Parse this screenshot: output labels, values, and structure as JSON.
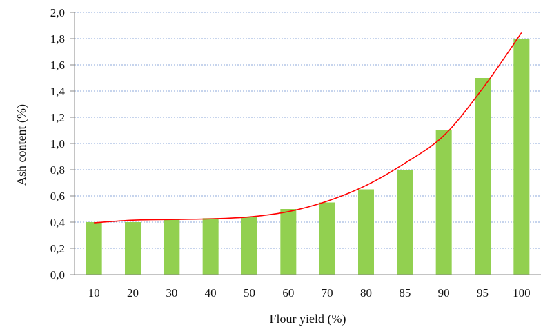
{
  "chart_data": {
    "type": "bar",
    "title": "",
    "xlabel": "Flour yield (%)",
    "ylabel": "Ash content (%)",
    "ylim": [
      0,
      2.0
    ],
    "yticks": [
      "0,0",
      "0,2",
      "0,4",
      "0,6",
      "0,8",
      "1,0",
      "1,2",
      "1,4",
      "1,6",
      "1,8",
      "2,0"
    ],
    "categories": [
      "10",
      "20",
      "30",
      "40",
      "50",
      "60",
      "70",
      "80",
      "85",
      "90",
      "95",
      "100"
    ],
    "series": [
      {
        "name": "Ash content",
        "values": [
          0.4,
          0.4,
          0.42,
          0.43,
          0.44,
          0.5,
          0.55,
          0.65,
          0.8,
          1.1,
          1.5,
          1.8
        ],
        "color": "#92d050"
      }
    ],
    "trendline": {
      "type": "polynomial",
      "color": "#ff0000",
      "points": [
        [
          10,
          0.395
        ],
        [
          20,
          0.415
        ],
        [
          30,
          0.42
        ],
        [
          40,
          0.425
        ],
        [
          50,
          0.44
        ],
        [
          60,
          0.48
        ],
        [
          70,
          0.56
        ],
        [
          80,
          0.68
        ],
        [
          85,
          0.85
        ],
        [
          90,
          1.06
        ],
        [
          95,
          1.42
        ],
        [
          100,
          1.845
        ]
      ]
    },
    "grid": true,
    "grid_color": "#8ea9db"
  }
}
